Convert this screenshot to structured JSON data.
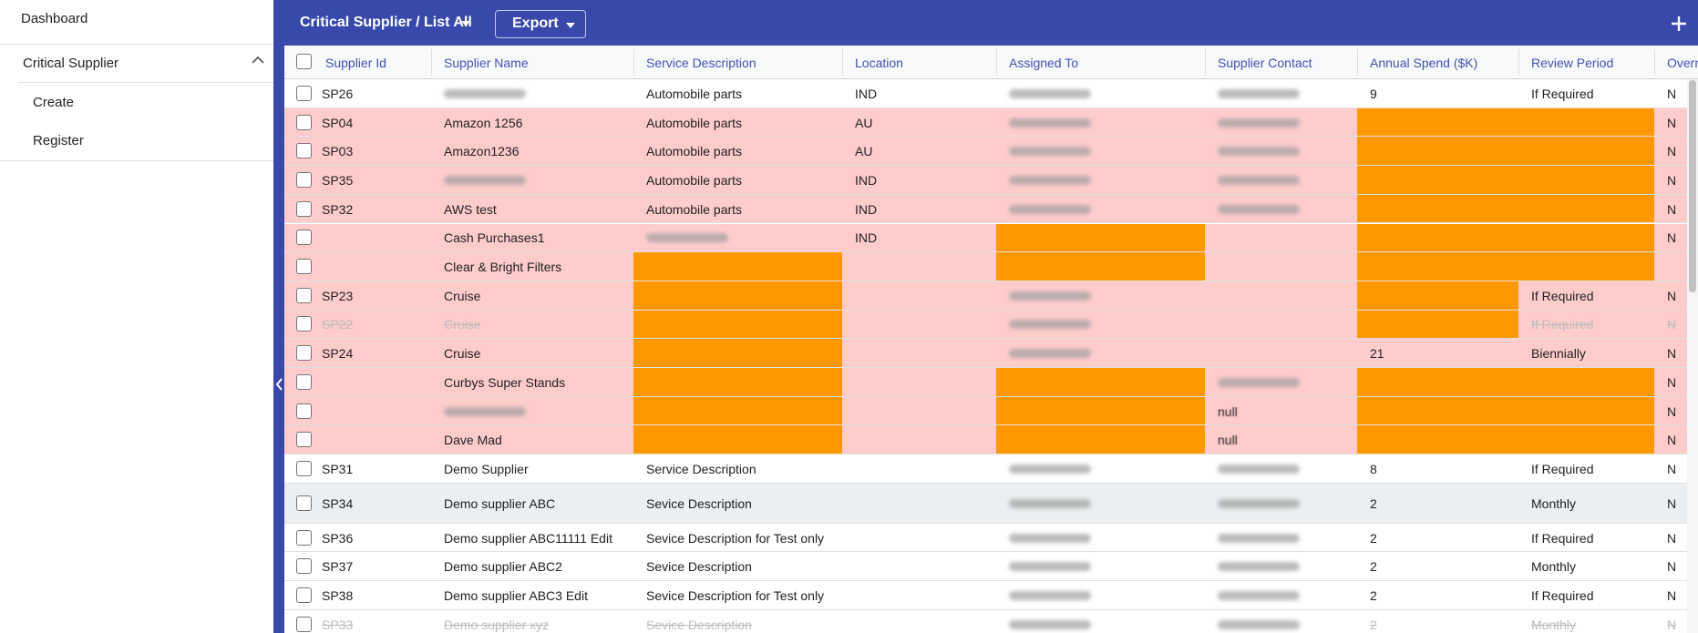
{
  "sidebar": {
    "items": [
      {
        "label": "Dashboard"
      },
      {
        "label": "Critical Supplier",
        "children": [
          "Create",
          "Register"
        ]
      }
    ]
  },
  "toolbar": {
    "title": "Critical Supplier / List All",
    "export": "Export"
  },
  "table": {
    "columns": [
      "Supplier Id",
      "Supplier Name",
      "Service Description",
      "Location",
      "Assigned To",
      "Supplier Contact",
      "Annual Spend ($K)",
      "Review Period",
      "Overr"
    ],
    "rows": [
      {
        "cells": [
          "SP26",
          null,
          "Automobile parts",
          "IND",
          null,
          null,
          9,
          "If Required",
          "N"
        ],
        "blurred": [
          1,
          4,
          5
        ]
      },
      {
        "cells": [
          "SP04",
          "Amazon 1256",
          "Automobile parts",
          "AU",
          null,
          null,
          null,
          null,
          "N"
        ],
        "blurred": [
          4,
          5
        ],
        "highlight": [
          6,
          7
        ],
        "tone": "pink"
      },
      {
        "cells": [
          "SP03",
          "Amazon1236",
          "Automobile parts",
          "AU",
          null,
          null,
          null,
          null,
          "N"
        ],
        "blurred": [
          4,
          5
        ],
        "highlight": [
          6,
          7
        ],
        "tone": "pink"
      },
      {
        "cells": [
          "SP35",
          null,
          "Automobile parts",
          "IND",
          null,
          null,
          null,
          null,
          "N"
        ],
        "blurred": [
          1,
          4,
          5
        ],
        "highlight": [
          6,
          7
        ],
        "tone": "pink"
      },
      {
        "cells": [
          "SP32",
          "AWS test",
          "Automobile parts",
          "IND",
          null,
          null,
          null,
          null,
          "N"
        ],
        "blurred": [
          4,
          5
        ],
        "highlight": [
          6,
          7
        ],
        "tone": "pink"
      },
      {
        "cells": [
          null,
          "Cash Purchases1",
          null,
          "IND",
          null,
          null,
          null,
          null,
          "N"
        ],
        "blurred": [
          2
        ],
        "highlight": [
          4,
          6,
          7
        ],
        "tone": "pink"
      },
      {
        "cells": [
          null,
          "Clear & Bright Filters",
          null,
          null,
          null,
          null,
          null,
          null,
          null
        ],
        "highlight": [
          2,
          4,
          6,
          7
        ],
        "tone": "pink"
      },
      {
        "cells": [
          "SP23",
          "Cruise",
          null,
          null,
          null,
          null,
          null,
          "If Required",
          "N"
        ],
        "blurred": [
          4
        ],
        "highlight": [
          2,
          6
        ],
        "tone": "pink"
      },
      {
        "cells": [
          "SP22",
          "Cruise",
          null,
          null,
          null,
          null,
          null,
          "If Required",
          "N"
        ],
        "blurred": [
          4
        ],
        "highlight": [
          2,
          6
        ],
        "tone": "pink",
        "struck": true
      },
      {
        "cells": [
          "SP24",
          "Cruise",
          null,
          null,
          null,
          null,
          21,
          "Biennially",
          "N"
        ],
        "blurred": [
          4
        ],
        "highlight": [
          2
        ],
        "tone": "pink"
      },
      {
        "cells": [
          null,
          "Curbys Super Stands",
          null,
          null,
          null,
          null,
          null,
          null,
          "N"
        ],
        "blurred": [
          5
        ],
        "highlight": [
          2,
          4,
          6,
          7
        ],
        "tone": "pink"
      },
      {
        "cells": [
          null,
          null,
          null,
          null,
          null,
          "null",
          null,
          null,
          "N"
        ],
        "blurred": [
          1
        ],
        "highlight": [
          2,
          4,
          6,
          7
        ],
        "tone": "pink"
      },
      {
        "cells": [
          null,
          "Dave Mad",
          null,
          null,
          null,
          "null",
          null,
          null,
          "N"
        ],
        "highlight": [
          2,
          4,
          6,
          7
        ],
        "tone": "pink"
      },
      {
        "cells": [
          "SP31",
          "Demo Supplier",
          "Service Description",
          null,
          null,
          null,
          8,
          "If Required",
          "N"
        ],
        "blurred": [
          4,
          5
        ]
      },
      {
        "cells": [
          "SP34",
          "Demo supplier ABC",
          "Sevice Description",
          null,
          null,
          null,
          2,
          "Monthly",
          "N"
        ],
        "blurred": [
          4,
          5
        ],
        "tone": "gray",
        "tall": true
      },
      {
        "cells": [
          "SP36",
          "Demo supplier ABC11111 Edit",
          "Sevice Description for Test only",
          null,
          null,
          null,
          2,
          "If Required",
          "N"
        ],
        "blurred": [
          4,
          5
        ]
      },
      {
        "cells": [
          "SP37",
          "Demo supplier ABC2",
          "Sevice Description",
          null,
          null,
          null,
          2,
          "Monthly",
          "N"
        ],
        "blurred": [
          4,
          5
        ]
      },
      {
        "cells": [
          "SP38",
          "Demo supplier ABC3 Edit",
          "Sevice Description for Test only",
          null,
          null,
          null,
          2,
          "If Required",
          "N"
        ],
        "blurred": [
          4,
          5
        ]
      },
      {
        "cells": [
          "SP33",
          "Demo supplier xyz",
          "Sevice Description",
          null,
          null,
          null,
          2,
          "Monthly",
          "N"
        ],
        "blurred": [
          4,
          5
        ],
        "struck": true
      }
    ]
  }
}
